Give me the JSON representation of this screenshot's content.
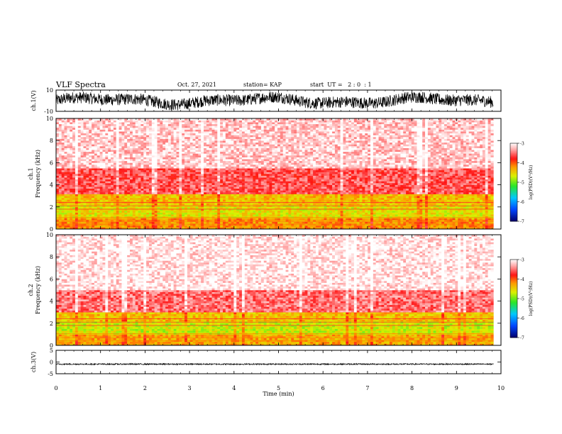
{
  "header": {
    "title": "VLF Spectra",
    "date": "Oct. 27, 2021",
    "station": "station= KAP",
    "start": "start  UT =   2 : 0  : 1"
  },
  "chart_data": [
    {
      "type": "line",
      "name": "ch1-waveform",
      "ylabel": "ch.1(V)",
      "ylim": [
        -10,
        10
      ],
      "y_ticks": [
        "10",
        "-10"
      ],
      "xlim": [
        0,
        10
      ],
      "data_extent_min": 9.83,
      "approx_range": [
        -10,
        10
      ]
    },
    {
      "type": "heatmap",
      "name": "ch1-spectrogram",
      "ylabel_line1": "ch.1",
      "ylabel_line2": "Frequency  (kHz)",
      "ylim": [
        0,
        10
      ],
      "y_ticks": [
        "0",
        "2",
        "4",
        "6",
        "8",
        "10"
      ],
      "xlim": [
        0,
        10
      ],
      "colorbar": {
        "label": "log(PSD)(V²/Hz)",
        "range": [
          -7,
          -3
        ],
        "ticks": [
          "-3",
          "-4",
          "-5",
          "-6",
          "-7"
        ]
      },
      "bands_kHz": [
        {
          "from": 0,
          "to": 1,
          "level": -4.2
        },
        {
          "from": 1,
          "to": 2.2,
          "level": -4.6
        },
        {
          "from": 2.2,
          "to": 3.2,
          "level": -4.4
        },
        {
          "from": 3.2,
          "to": 5.5,
          "level": -3.6
        },
        {
          "from": 5.5,
          "to": 10,
          "level": -3.2
        }
      ]
    },
    {
      "type": "heatmap",
      "name": "ch2-spectrogram",
      "ylabel_line1": "ch.2",
      "ylabel_line2": "Frequency  (kHz)",
      "ylim": [
        0,
        10
      ],
      "y_ticks": [
        "0",
        "2",
        "4",
        "6",
        "8",
        "10"
      ],
      "xlim": [
        0,
        10
      ],
      "colorbar": {
        "label": "log(PSD)(V²/Hz)",
        "range": [
          -7,
          -3
        ],
        "ticks": [
          "-3",
          "-4",
          "-5",
          "-6",
          "-7"
        ]
      },
      "bands_kHz": [
        {
          "from": 0,
          "to": 1,
          "level": -4.3
        },
        {
          "from": 1,
          "to": 2.2,
          "level": -4.7
        },
        {
          "from": 2.2,
          "to": 3.0,
          "level": -4.4
        },
        {
          "from": 3.0,
          "to": 5.0,
          "level": -3.5
        },
        {
          "from": 5.0,
          "to": 10,
          "level": -3.1
        }
      ]
    },
    {
      "type": "line",
      "name": "ch3-waveform",
      "ylabel": "ch.3(V)",
      "ylim": [
        -5,
        5
      ],
      "y_ticks": [
        "5",
        "0",
        "-5"
      ],
      "xlim": [
        0,
        10
      ],
      "data_extent_min": 9.83,
      "approx_range": [
        -1.6,
        -0.2
      ]
    }
  ],
  "x_axis": {
    "label": "Time  (min)",
    "ticks": [
      "0",
      "1",
      "2",
      "3",
      "4",
      "5",
      "6",
      "7",
      "8",
      "9",
      "10"
    ],
    "range": [
      0,
      10
    ]
  }
}
